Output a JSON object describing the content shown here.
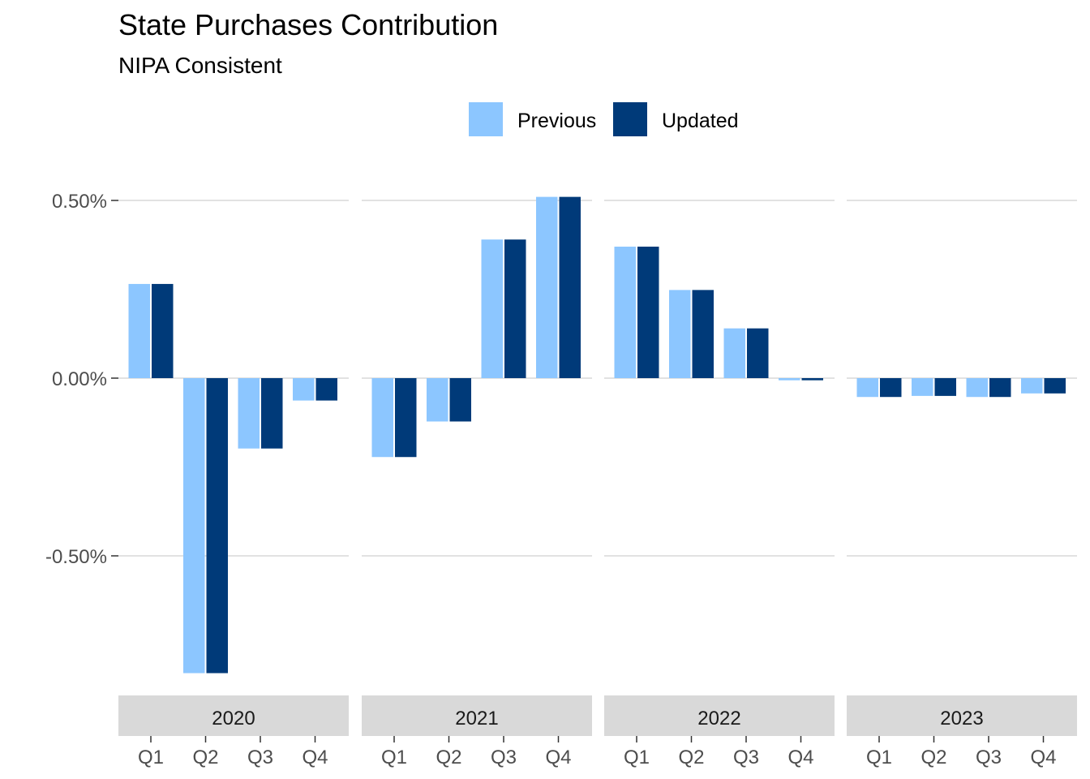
{
  "chart_data": {
    "type": "bar",
    "title": "State Purchases Contribution",
    "subtitle": "NIPA Consistent",
    "xlabel": "",
    "ylabel": "",
    "facets": [
      "2020",
      "2021",
      "2022",
      "2023"
    ],
    "categories": [
      "Q1",
      "Q2",
      "Q3",
      "Q4"
    ],
    "y_ticks": [
      {
        "value": 0.5,
        "label": "0.50%"
      },
      {
        "value": 0.0,
        "label": "0.00%"
      },
      {
        "value": -0.5,
        "label": "-0.50%"
      }
    ],
    "ylim": [
      -0.835,
      0.5
    ],
    "grid": "horizontal major",
    "legend_position": "top",
    "series": [
      {
        "name": "Previous",
        "color": "#8cc6ff",
        "values": {
          "2020": [
            0.265,
            -0.83,
            -0.198,
            -0.063
          ],
          "2021": [
            -0.222,
            -0.122,
            0.39,
            0.51
          ],
          "2022": [
            0.37,
            0.248,
            0.14,
            -0.006
          ],
          "2023": [
            -0.053,
            -0.05,
            -0.053,
            -0.043
          ]
        }
      },
      {
        "name": "Updated",
        "color": "#003a79",
        "values": {
          "2020": [
            0.265,
            -0.83,
            -0.198,
            -0.063
          ],
          "2021": [
            -0.222,
            -0.122,
            0.39,
            0.51
          ],
          "2022": [
            0.37,
            0.248,
            0.14,
            -0.006
          ],
          "2023": [
            -0.053,
            -0.05,
            -0.053,
            -0.043
          ]
        }
      }
    ]
  },
  "style": {
    "grid_color": "#d9d9d9",
    "strip_fill": "#d9d9d9"
  }
}
